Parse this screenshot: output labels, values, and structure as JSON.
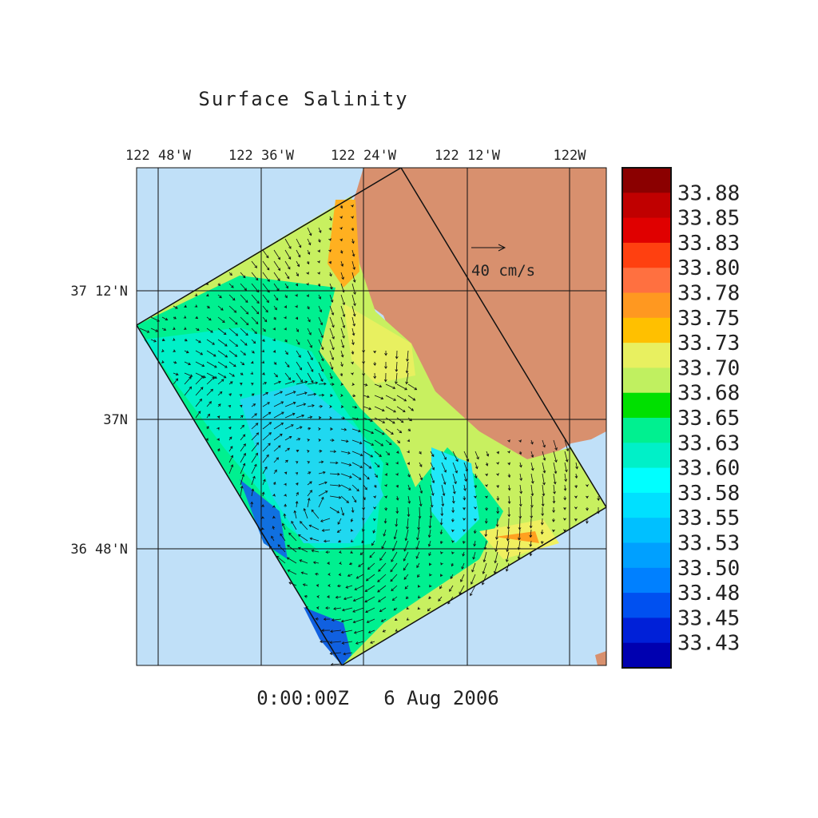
{
  "title": "Surface Salinity",
  "lon_labels": [
    "122 48'W",
    "122 36'W",
    "122 24'W",
    "122 12'W",
    "122W"
  ],
  "lat_labels": [
    "37 12'N",
    "37N",
    "36 48'N"
  ],
  "scale_label": "40 cm/s",
  "time_label": "0:00:00Z   6 Aug 2006",
  "colorbar": {
    "colors": [
      "#8b0000",
      "#c00000",
      "#e00000",
      "#ff4010",
      "#ff7040",
      "#ff9820",
      "#ffc000",
      "#e8f060",
      "#c0f060",
      "#00e000",
      "#00f090",
      "#00f0c8",
      "#00ffff",
      "#00e0ff",
      "#00c0ff",
      "#00a0ff",
      "#0080ff",
      "#0050f0",
      "#0020d8",
      "#0000b0"
    ],
    "labels": [
      "33.88",
      "33.85",
      "33.83",
      "33.80",
      "33.78",
      "33.75",
      "33.73",
      "33.70",
      "33.68",
      "33.65",
      "33.63",
      "33.60",
      "33.58",
      "33.55",
      "33.53",
      "33.50",
      "33.48",
      "33.45",
      "33.43"
    ]
  }
}
